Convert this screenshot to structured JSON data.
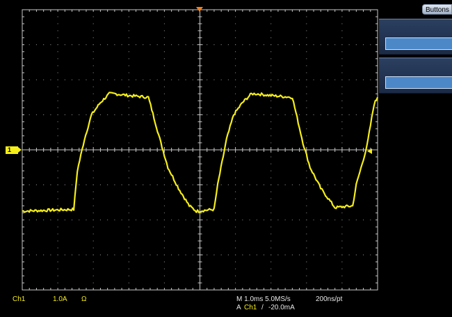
{
  "side_panel": {
    "tab_label": "Buttons",
    "buttons": [
      {
        "value": ""
      },
      {
        "value": ""
      }
    ]
  },
  "channel_marker": {
    "label": "1"
  },
  "readout": {
    "channel": "Ch1",
    "vertical_scale": "1.0A",
    "coupling_symbol": "Ω",
    "horizontal": "M 1.0ms 5.0MS/s",
    "resolution": "200ns/pt",
    "trigger_prefix": "A",
    "trigger_channel": "Ch1",
    "trigger_slope": "/",
    "trigger_level": "-20.0mA"
  },
  "colors": {
    "trace": "#f5ee18",
    "grid": "#c8c8c8",
    "trigger_marker": "#f08020",
    "panel": "#223457"
  },
  "chart_data": {
    "type": "line",
    "xlabel": "",
    "ylabel": "",
    "x_divisions": 10,
    "y_divisions": 8,
    "x_units_per_div": "1.0ms",
    "y_units_per_div": "1.0A",
    "grid": true,
    "series": [
      {
        "x": [
          0.0,
          1.45,
          1.55,
          1.75,
          1.95,
          2.2,
          2.45,
          2.6,
          3.0,
          3.55,
          3.9,
          4.1,
          4.4,
          4.7,
          4.9,
          5.4,
          5.5,
          5.75,
          5.95,
          6.2,
          6.45,
          6.6,
          7.0,
          7.6,
          7.9,
          8.1,
          8.4,
          8.8,
          9.3,
          9.4,
          9.7,
          9.9,
          10.0
        ],
        "y": [
          -1.75,
          -1.7,
          -0.6,
          0.3,
          1.0,
          1.35,
          1.6,
          1.6,
          1.55,
          1.5,
          0.2,
          -0.5,
          -1.1,
          -1.6,
          -1.75,
          -1.7,
          -1.0,
          0.3,
          1.0,
          1.35,
          1.6,
          1.6,
          1.55,
          1.5,
          0.2,
          -0.5,
          -1.1,
          -1.65,
          -1.6,
          -1.0,
          0.1,
          1.3,
          1.5
        ]
      }
    ]
  }
}
